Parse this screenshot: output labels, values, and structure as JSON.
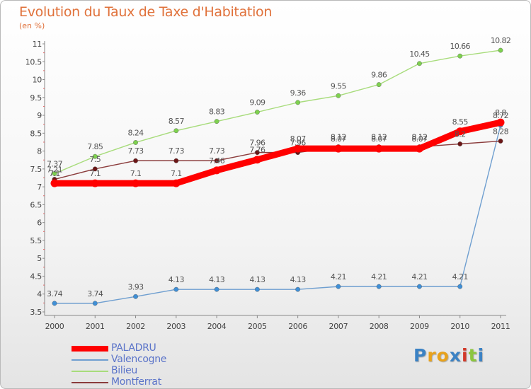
{
  "page": {
    "title": "Evolution du Taux de Taxe d'Habitation",
    "subtitle": "(en %)"
  },
  "chart_data": {
    "type": "line",
    "title": "Evolution du Taux de Taxe d'Habitation",
    "ylabel": "(en %)",
    "xlabel": "",
    "x": [
      "2000",
      "2001",
      "2002",
      "2003",
      "2004",
      "2005",
      "2006",
      "2007",
      "2008",
      "2009",
      "2010",
      "2011"
    ],
    "ylim": [
      3.5,
      11
    ],
    "yticks": [
      "3.5",
      "4",
      "4.5",
      "5",
      "5.5",
      "6",
      "6.5",
      "7",
      "7.5",
      "8",
      "8.5",
      "9",
      "9.5",
      "10",
      "10.5",
      "11"
    ],
    "grid": false,
    "legend_position": "bottom-left",
    "series": [
      {
        "name": "PALADRU",
        "color": "#ff0000",
        "dot_color": "#ff0000",
        "values": [
          7.1,
          7.1,
          7.1,
          7.1,
          7.46,
          7.76,
          8.07,
          8.07,
          8.07,
          8.07,
          8.55,
          8.8
        ],
        "labels": [
          "7.1",
          "7.1",
          "7.1",
          "7.1",
          "7.46",
          "7.76",
          "8.07",
          "8.07",
          "8.07",
          "8.07",
          "8.55",
          "8.8"
        ]
      },
      {
        "name": "Valencogne",
        "color": "#6f9fd0",
        "dot_color": "#3f8fd6",
        "values": [
          3.74,
          3.74,
          3.93,
          4.13,
          4.13,
          4.13,
          4.13,
          4.21,
          4.21,
          4.21,
          4.21,
          8.72
        ],
        "labels": [
          "3.74",
          "3.74",
          "3.93",
          "4.13",
          "4.13",
          "4.13",
          "4.13",
          "4.21",
          "4.21",
          "4.21",
          "4.21",
          "8.72"
        ]
      },
      {
        "name": "Bilieu",
        "color": "#a8dc7c",
        "dot_color": "#7ed14f",
        "values": [
          7.37,
          7.85,
          8.24,
          8.57,
          8.83,
          9.09,
          9.36,
          9.55,
          9.86,
          10.45,
          10.66,
          10.82
        ],
        "labels": [
          "7.37",
          "7.85",
          "8.24",
          "8.57",
          "8.83",
          "9.09",
          "9.36",
          "9.55",
          "9.86",
          "10.45",
          "10.66",
          "10.82"
        ]
      },
      {
        "name": "Montferrat",
        "color": "#8b3c3c",
        "dot_color": "#6b1616",
        "values": [
          7.21,
          7.5,
          7.73,
          7.73,
          7.73,
          7.96,
          7.96,
          8.12,
          8.12,
          8.12,
          8.2,
          8.28
        ],
        "labels": [
          "7.21",
          "7.5",
          "7.73",
          "7.73",
          "7.73",
          "7.96",
          "7.96",
          "8.12",
          "8.12",
          "8.12",
          "8.2",
          "8.28"
        ]
      }
    ]
  },
  "legend": {
    "items": [
      {
        "label": "PALADRU",
        "color": "#ff0000"
      },
      {
        "label": "Valencogne",
        "color": "#6f9fd0"
      },
      {
        "label": "Bilieu",
        "color": "#a8dc7c"
      },
      {
        "label": "Montferrat",
        "color": "#8b3c3c"
      }
    ]
  },
  "logo": {
    "letters": [
      "P",
      "r",
      "o",
      "x",
      "i",
      "t",
      "i"
    ],
    "colors": [
      "#3b82c4",
      "#e8a21c",
      "#e8a21c",
      "#3b82c4",
      "#d23a2a",
      "#8cc63f",
      "#3b82c4"
    ]
  }
}
